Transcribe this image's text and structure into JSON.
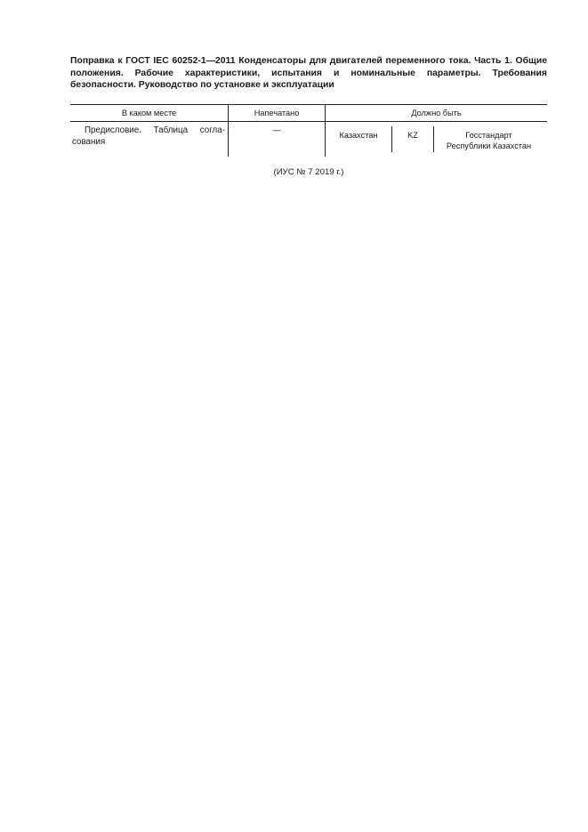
{
  "title": "Поправка к ГОСТ IEC 60252-1—2011 Конденсаторы для двигателей переменного тока. Часть 1. Общие положения. Рабочие характеристики, испытания и номинальные параметры. Требования безопасности. Руководство по установке и эксплуатации",
  "table": {
    "headers": [
      "В каком месте",
      "Напечатано",
      "Должно быть"
    ],
    "rows": [
      {
        "location": "Предисловие. Таблица согла-сования",
        "printed": "—",
        "should_be": [
          "Казахстан",
          "KZ",
          "Госстандарт Республики Казахстан"
        ]
      }
    ]
  },
  "footnote": "(ИУС № 7  2019 г.)"
}
